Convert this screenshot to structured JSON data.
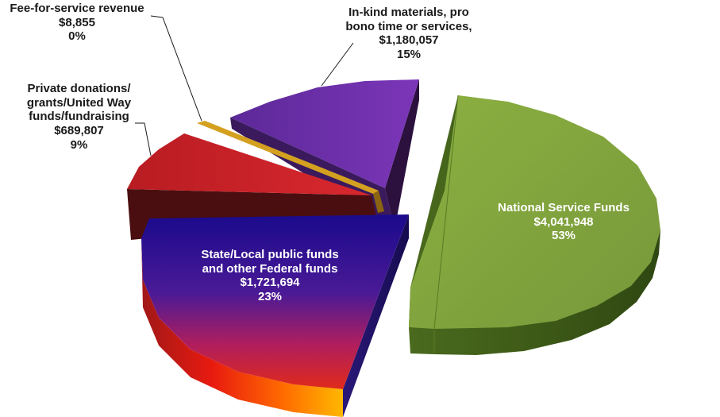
{
  "chart_data": {
    "type": "pie",
    "title": "",
    "legend": "none",
    "slices": [
      {
        "label": "National Service Funds",
        "value_label": "$4,041,948",
        "pct_label": "53%",
        "value": 4041948,
        "color": "#7ea23a"
      },
      {
        "label": "State/Local public funds and other Federal funds",
        "value_label": "$1,721,694",
        "pct_label": "23%",
        "value": 1721694,
        "color": "#3a1a9a"
      },
      {
        "label": "Private donations/ grants/United Way funds/fundraising",
        "value_label": "$689,807",
        "pct_label": "9%",
        "value": 689807,
        "color": "#c8242a"
      },
      {
        "label": "Fee-for-service revenue",
        "value_label": "$8,855",
        "pct_label": "0%",
        "value": 8855,
        "color": "#d4a020"
      },
      {
        "label": "In-kind materials, pro bono time or services,",
        "value_label": "$1,180,057",
        "pct_label": "15%",
        "value": 1180057,
        "color": "#6a2fa6"
      }
    ]
  },
  "labels": {
    "national": {
      "l1": "National Service Funds",
      "l2": "$4,041,948",
      "l3": "53%"
    },
    "state": {
      "l1": "State/Local public funds",
      "l2": "and other Federal funds",
      "l3": "$1,721,694",
      "l4": "23%"
    },
    "private": {
      "l1": "Private donations/",
      "l2": "grants/United Way",
      "l3": "funds/fundraising",
      "l4": "$689,807",
      "l5": "9%"
    },
    "fee": {
      "l1": "Fee-for-service revenue",
      "l2": "$8,855",
      "l3": "0%"
    },
    "inkind": {
      "l1": "In-kind materials, pro",
      "l2": "bono time or services,",
      "l3": "$1,180,057",
      "l4": "15%"
    }
  }
}
